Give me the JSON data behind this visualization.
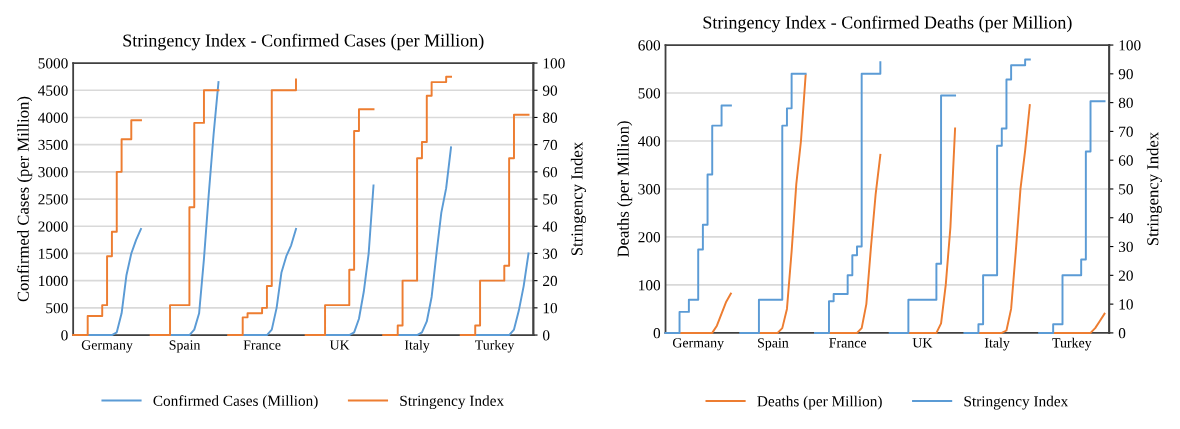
{
  "chart_data": [
    {
      "type": "line",
      "title": "Stringency Index - Confirmed Cases (per Million)",
      "ylabel": "Confirmed Cases (per Million)",
      "y2label": "Stringency Index",
      "categories": [
        null,
        null,
        null,
        null,
        null,
        null,
        null,
        "Germany",
        null,
        null,
        null,
        null,
        null,
        null,
        null,
        null,
        null,
        null,
        null,
        null,
        null,
        null,
        null,
        "Spain",
        null,
        null,
        null,
        null,
        null,
        null,
        null,
        null,
        null,
        null,
        null,
        null,
        null,
        null,
        null,
        "France",
        null,
        null,
        null,
        null,
        null,
        null,
        null,
        null,
        null,
        null,
        null,
        null,
        null,
        null,
        null,
        "UK",
        null,
        null,
        null,
        null,
        null,
        null,
        null,
        null,
        null,
        null,
        null,
        null,
        null,
        null,
        null,
        "Italy",
        null,
        null,
        null,
        null,
        null,
        null,
        null,
        null,
        null,
        null,
        null,
        null,
        null,
        null,
        null,
        "Turkey",
        null,
        null,
        null,
        null,
        null,
        null,
        null,
        null
      ],
      "series": [
        {
          "name": "Confirmed Cases (Million)",
          "color": "#5b9bd5",
          "axis": "y",
          "values": [
            null,
            null,
            null,
            0,
            0,
            0,
            0,
            0,
            0,
            50,
            400,
            1100,
            1500,
            1750,
            1950,
            null,
            null,
            null,
            null,
            null,
            0,
            0,
            0,
            0,
            0,
            100,
            400,
            1400,
            2600,
            3700,
            4650,
            null,
            null,
            null,
            null,
            0,
            0,
            0,
            0,
            0,
            0,
            100,
            500,
            1150,
            1450,
            1650,
            1950,
            null,
            null,
            null,
            null,
            null,
            0,
            0,
            0,
            0,
            0,
            0,
            50,
            300,
            800,
            1500,
            2750,
            null,
            null,
            null,
            null,
            0,
            0,
            0,
            0,
            0,
            50,
            250,
            700,
            1500,
            2250,
            2700,
            3450,
            null,
            null,
            null,
            null,
            0,
            0,
            0,
            0,
            0,
            0,
            0,
            0,
            100,
            450,
            900,
            1500,
            null
          ]
        },
        {
          "name": "Stringency Index",
          "color": "#ed7d31",
          "type": "step",
          "axis": "y2",
          "values": [
            0,
            0,
            0,
            7,
            7,
            7,
            11,
            29,
            38,
            60,
            72,
            72,
            79,
            79,
            79,
            null,
            0,
            0,
            0,
            0,
            11,
            11,
            11,
            11,
            47,
            78,
            78,
            90,
            90,
            90,
            90,
            null,
            0,
            0,
            0,
            6.5,
            8,
            8,
            8,
            10,
            18,
            90,
            90,
            90,
            90,
            90,
            94,
            null,
            0,
            0,
            0,
            0,
            11,
            11,
            11,
            11,
            11,
            24,
            75,
            83,
            83,
            83,
            83,
            null,
            0,
            0,
            0,
            3.5,
            20,
            20,
            20,
            65,
            71,
            88,
            93,
            93,
            93,
            95,
            95,
            null,
            0,
            0,
            0,
            3.5,
            20,
            20,
            20,
            20,
            20,
            25.5,
            65,
            81,
            81,
            81,
            81,
            null
          ]
        }
      ],
      "ylim": [
        0,
        5000
      ],
      "yticks": [
        0,
        500,
        1000,
        1500,
        2000,
        2500,
        3000,
        3500,
        4000,
        4500,
        5000
      ],
      "y2lim": [
        0,
        100
      ],
      "y2ticks": [
        0,
        10,
        20,
        30,
        40,
        50,
        60,
        70,
        80,
        90,
        100
      ],
      "grid": "y",
      "legend": "bottom",
      "marker": "none"
    },
    {
      "type": "line",
      "title": "Stringency Index - Confirmed Deaths (per Million)",
      "ylabel": "Deaths (per Million)",
      "y2label": "Stringency Index",
      "categories": [
        null,
        null,
        null,
        null,
        null,
        null,
        null,
        "Germany",
        null,
        null,
        null,
        null,
        null,
        null,
        null,
        null,
        null,
        null,
        null,
        null,
        null,
        null,
        null,
        "Spain",
        null,
        null,
        null,
        null,
        null,
        null,
        null,
        null,
        null,
        null,
        null,
        null,
        null,
        null,
        null,
        "France",
        null,
        null,
        null,
        null,
        null,
        null,
        null,
        null,
        null,
        null,
        null,
        null,
        null,
        null,
        null,
        "UK",
        null,
        null,
        null,
        null,
        null,
        null,
        null,
        null,
        null,
        null,
        null,
        null,
        null,
        null,
        null,
        "Italy",
        null,
        null,
        null,
        null,
        null,
        null,
        null,
        null,
        null,
        null,
        null,
        null,
        null,
        null,
        null,
        "Turkey",
        null,
        null,
        null,
        null,
        null,
        null,
        null,
        null
      ],
      "series": [
        {
          "name": "Deaths (per Million)",
          "color": "#ed7d31",
          "axis": "y",
          "values": [
            null,
            null,
            null,
            0,
            0,
            0,
            0,
            0,
            0,
            0,
            0,
            15,
            40,
            65,
            82,
            null,
            null,
            null,
            null,
            null,
            0,
            0,
            0,
            0,
            0,
            10,
            50,
            170,
            310,
            400,
            537,
            null,
            null,
            null,
            null,
            0,
            0,
            0,
            0,
            0,
            0,
            0,
            10,
            60,
            180,
            290,
            371,
            null,
            null,
            null,
            null,
            null,
            0,
            0,
            0,
            0,
            0,
            0,
            0,
            20,
            100,
            220,
            426,
            null,
            null,
            null,
            null,
            0,
            0,
            0,
            0,
            0,
            0,
            5,
            50,
            170,
            300,
            380,
            475,
            null,
            null,
            null,
            null,
            0,
            0,
            0,
            0,
            0,
            0,
            0,
            0,
            0,
            10,
            25,
            40,
            null
          ]
        },
        {
          "name": "Stringency Index",
          "color": "#5b9bd5",
          "type": "step",
          "axis": "y2",
          "values": [
            0,
            0,
            0,
            7.3,
            7.3,
            11.5,
            11.5,
            29,
            37.6,
            55,
            72,
            72,
            79,
            79,
            79,
            null,
            0,
            0,
            0,
            0,
            11.5,
            11.5,
            11.5,
            11.5,
            11.5,
            72,
            78,
            90,
            90,
            90,
            90,
            null,
            0,
            0,
            0,
            11,
            13.5,
            13.5,
            13.5,
            20,
            27,
            30,
            90,
            90,
            90,
            90,
            94,
            null,
            0,
            0,
            0,
            0,
            11.5,
            11.5,
            11.5,
            11.5,
            11.5,
            11.5,
            24,
            82.5,
            82.5,
            82.5,
            82.5,
            null,
            0,
            0,
            0,
            3,
            20,
            20,
            20,
            65,
            71,
            88,
            93,
            93,
            93,
            95,
            95,
            null,
            0,
            0,
            0,
            3,
            3,
            20,
            20,
            20,
            20,
            25.5,
            63,
            80.5,
            80.5,
            80.5,
            80.5,
            null
          ]
        }
      ],
      "ylim": [
        0,
        600
      ],
      "yticks": [
        0,
        100,
        200,
        300,
        400,
        500,
        600
      ],
      "y2lim": [
        0,
        100
      ],
      "y2ticks": [
        0,
        10,
        20,
        30,
        40,
        50,
        60,
        70,
        80,
        90,
        100
      ],
      "grid": "y",
      "legend": "bottom",
      "marker": "none"
    }
  ]
}
